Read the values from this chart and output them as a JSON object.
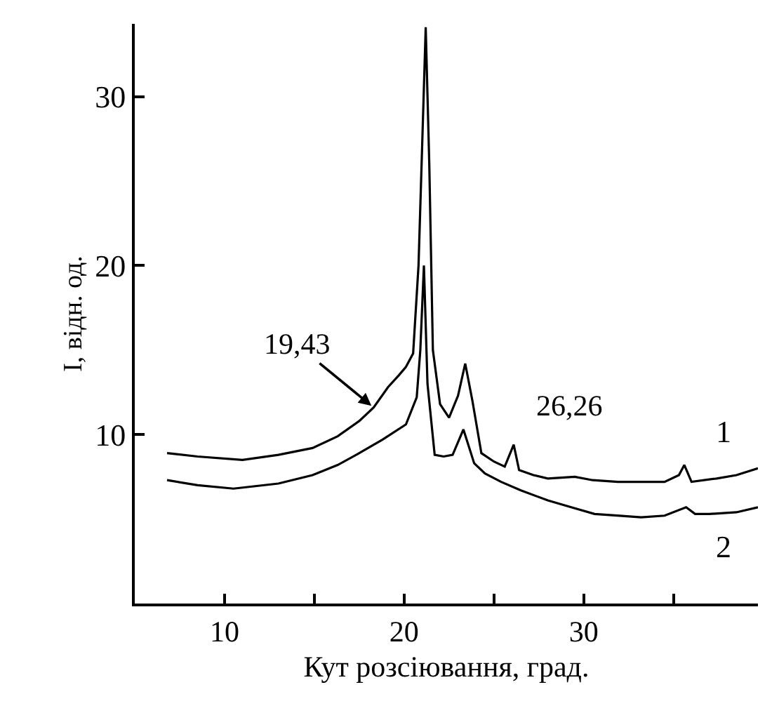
{
  "chart_data": {
    "type": "line",
    "xlabel": "Кут розсіювання, град.",
    "ylabel": "I, відн. од.",
    "xlim": [
      5,
      39.7
    ],
    "ylim": [
      0,
      34.3
    ],
    "xticks": [
      10,
      {
        "value": 15,
        "label": null
      },
      20,
      {
        "value": 25,
        "label": null
      },
      30,
      {
        "value": 35,
        "label": null
      }
    ],
    "yticks": [
      10,
      20,
      30
    ],
    "grid": false,
    "legend": false,
    "marker": "none",
    "line_style": "solid",
    "annotations": [
      {
        "text": "19,43",
        "x": 18.3,
        "y": 11.6
      },
      {
        "text": "26,26",
        "x": 26.1,
        "y": 9.4
      }
    ],
    "series": [
      {
        "name": "1",
        "color": "#000000",
        "x": [
          6.8,
          8.5,
          11,
          13,
          14.9,
          16.3,
          17.5,
          18.3,
          19.1,
          19.7,
          20.1,
          20.5,
          20.8,
          21.0,
          21.2,
          21.4,
          21.6,
          22.0,
          22.5,
          23.0,
          23.4,
          23.8,
          24.3,
          25.0,
          25.6,
          26.1,
          26.4,
          27.2,
          28,
          29.5,
          30.5,
          31.9,
          33.2,
          34.5,
          35.3,
          35.6,
          36.0,
          37.4,
          38.5,
          39.7
        ],
        "values": [
          8.9,
          8.7,
          8.5,
          8.8,
          9.2,
          9.9,
          10.8,
          11.6,
          12.8,
          13.5,
          14.0,
          14.8,
          20,
          27,
          34.1,
          26,
          15,
          11.8,
          11.0,
          12.3,
          14.2,
          12.0,
          8.9,
          8.4,
          8.1,
          9.4,
          7.9,
          7.6,
          7.4,
          7.5,
          7.3,
          7.2,
          7.2,
          7.2,
          7.6,
          8.2,
          7.2,
          7.4,
          7.6,
          8.0
        ]
      },
      {
        "name": "2",
        "color": "#000000",
        "x": [
          6.8,
          8.5,
          10.5,
          13,
          14.9,
          16.3,
          17.5,
          18.8,
          20.1,
          20.7,
          20.9,
          21.1,
          21.3,
          21.7,
          22.2,
          22.7,
          23.3,
          23.9,
          24.5,
          25.4,
          26.5,
          28,
          29.3,
          30.6,
          32,
          33.2,
          34.5,
          35.7,
          36.2,
          37,
          38.5,
          39.7
        ],
        "values": [
          7.3,
          7.0,
          6.8,
          7.1,
          7.6,
          8.2,
          8.9,
          9.7,
          10.6,
          12.2,
          15,
          20,
          13,
          8.8,
          8.7,
          8.8,
          10.3,
          8.3,
          7.7,
          7.2,
          6.7,
          6.1,
          5.7,
          5.3,
          5.2,
          5.1,
          5.2,
          5.7,
          5.3,
          5.3,
          5.4,
          5.7
        ]
      }
    ]
  }
}
